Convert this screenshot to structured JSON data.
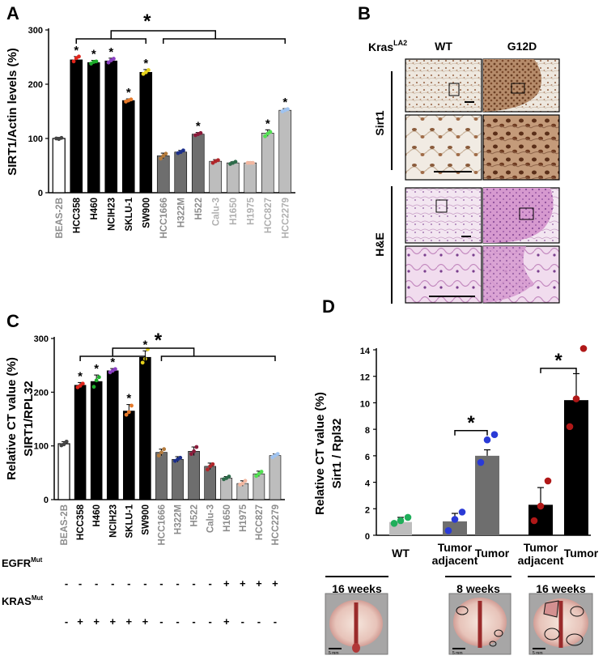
{
  "panels": {
    "a": "A",
    "b": "B",
    "c": "C",
    "d": "D"
  },
  "chart_data": [
    {
      "id": "A",
      "type": "bar",
      "ylabel": "SIRT1/Actin levels (%)",
      "ylim": [
        0,
        300
      ],
      "yticks": [
        "0",
        "100",
        "200",
        "300"
      ],
      "categories": [
        "BEAS-2B",
        "HCC358",
        "H460",
        "NCIH23",
        "SKLU-1",
        "SW900",
        "HCC1666",
        "H322M",
        "H522",
        "Calu-3",
        "H1650",
        "H1975",
        "HCC827",
        "HCC2279"
      ],
      "values": [
        100,
        245,
        240,
        243,
        170,
        222,
        68,
        75,
        108,
        58,
        55,
        55,
        110,
        152
      ],
      "errors": [
        2,
        6,
        4,
        5,
        3,
        5,
        5,
        3,
        3,
        3,
        2,
        2,
        6,
        3
      ],
      "points": [
        [
          100,
          99,
          101
        ],
        [
          242,
          248,
          251
        ],
        [
          238,
          241,
          242
        ],
        [
          240,
          244,
          247
        ],
        [
          168,
          170,
          172
        ],
        [
          219,
          222,
          226
        ],
        [
          63,
          68,
          72
        ],
        [
          73,
          75,
          78
        ],
        [
          106,
          108,
          110
        ],
        [
          55,
          58,
          60
        ],
        [
          53,
          55,
          57
        ],
        [
          55,
          55,
          55
        ],
        [
          104,
          109,
          112
        ],
        [
          150,
          152,
          154
        ]
      ],
      "fill": [
        "#ffffff",
        "#000000",
        "#000000",
        "#000000",
        "#000000",
        "#000000",
        "#6e6e6e",
        "#6e6e6e",
        "#6e6e6e",
        "#bdbdbd",
        "#bdbdbd",
        "#bdbdbd",
        "#bdbdbd",
        "#bdbdbd"
      ],
      "label_colors": [
        "#8c8c8c",
        "#000000",
        "#000000",
        "#000000",
        "#000000",
        "#000000",
        "#8c8c8c",
        "#8c8c8c",
        "#8c8c8c",
        "#b0b0b0",
        "#b0b0b0",
        "#b0b0b0",
        "#b0b0b0",
        "#b0b0b0"
      ],
      "dot_colors": [
        "#444444",
        "#e0241b",
        "#1fae2c",
        "#8a3fc1",
        "#e5792a",
        "#e6d21c",
        "#b37a3c",
        "#1c2f8a",
        "#8b1a3a",
        "#b0262a",
        "#2e6b4a",
        "#f2b7a0",
        "#52e052",
        "#9fc3f0"
      ],
      "stars": [
        false,
        true,
        true,
        true,
        true,
        true,
        false,
        false,
        true,
        false,
        false,
        false,
        true,
        true
      ],
      "bracket_star": "*"
    },
    {
      "id": "C",
      "type": "bar",
      "ylabel": [
        "Relative CT value (%)",
        "SIRT1/RPL32"
      ],
      "ylim": [
        0,
        300
      ],
      "yticks": [
        "0",
        "100",
        "200",
        "300"
      ],
      "categories": [
        "BEAS-2B",
        "HCC358",
        "H460",
        "NCIH23",
        "SKLU-1",
        "SW900",
        "HCC1666",
        "H322M",
        "H522",
        "Calu-3",
        "H1650",
        "H1975",
        "HCC827",
        "HCC2279"
      ],
      "values": [
        104,
        213,
        220,
        240,
        165,
        265,
        88,
        75,
        90,
        62,
        40,
        30,
        48,
        82
      ],
      "errors": [
        4,
        5,
        12,
        4,
        12,
        12,
        6,
        5,
        8,
        6,
        3,
        5,
        5,
        3
      ],
      "points": [
        [
          101,
          103,
          108
        ],
        [
          209,
          212,
          216
        ],
        [
          210,
          222,
          228
        ],
        [
          237,
          240,
          243
        ],
        [
          158,
          163,
          175
        ],
        [
          255,
          262,
          280
        ],
        [
          82,
          88,
          94
        ],
        [
          72,
          75,
          78
        ],
        [
          85,
          90,
          98
        ],
        [
          56,
          62,
          66
        ],
        [
          38,
          40,
          43
        ],
        [
          28,
          30,
          35
        ],
        [
          44,
          48,
          52
        ],
        [
          79,
          82,
          85
        ]
      ],
      "fill": [
        "#ffffff",
        "#000000",
        "#000000",
        "#000000",
        "#000000",
        "#000000",
        "#6e6e6e",
        "#6e6e6e",
        "#6e6e6e",
        "#6e6e6e",
        "#bdbdbd",
        "#bdbdbd",
        "#bdbdbd",
        "#bdbdbd"
      ],
      "label_colors": [
        "#8c8c8c",
        "#000000",
        "#000000",
        "#000000",
        "#000000",
        "#000000",
        "#8c8c8c",
        "#8c8c8c",
        "#8c8c8c",
        "#8c8c8c",
        "#8c8c8c",
        "#8c8c8c",
        "#8c8c8c",
        "#8c8c8c"
      ],
      "dot_colors": [
        "#444444",
        "#e0241b",
        "#1fae2c",
        "#8a3fc1",
        "#e5792a",
        "#e6d21c",
        "#b37a3c",
        "#1c2f8a",
        "#8b1a3a",
        "#b0262a",
        "#2e6b4a",
        "#f2b7a0",
        "#52e052",
        "#9fc3f0"
      ],
      "stars": [
        false,
        true,
        true,
        true,
        true,
        true,
        false,
        false,
        false,
        false,
        false,
        false,
        false,
        false
      ],
      "bracket_star": "*",
      "egfr_label": "EGFR",
      "kras_label": "KRAS",
      "mut_sup": "Mut",
      "egfr": [
        "-",
        "-",
        "-",
        "-",
        "-",
        "-",
        "-",
        "-",
        "-",
        "-",
        "+",
        "+",
        "+",
        "+"
      ],
      "kras": [
        "-",
        "+",
        "+",
        "+",
        "+",
        "+",
        "-",
        "-",
        "-",
        "-",
        "+",
        "-",
        "-",
        "-"
      ]
    },
    {
      "id": "D",
      "type": "bar",
      "ylabel": [
        "Relative CT value (%)",
        "Sirt1 / Rpl32"
      ],
      "ylim": [
        0,
        14
      ],
      "yticks": [
        "0",
        "2",
        "4",
        "6",
        "8",
        "10",
        "12",
        "14"
      ],
      "categories": [
        "WT",
        "Tumor adjacent",
        "Tumor",
        "Tumor adjacent",
        "Tumor"
      ],
      "category_lines": [
        [
          "WT"
        ],
        [
          "Tumor",
          "adjacent"
        ],
        [
          "Tumor"
        ],
        [
          "Tumor",
          "adjacent"
        ],
        [
          "Tumor"
        ]
      ],
      "values": [
        1.0,
        1.05,
        6.0,
        2.3,
        10.2
      ],
      "errors": [
        0.35,
        0.6,
        0.45,
        1.3,
        2.0
      ],
      "points": [
        [
          0.9,
          1.1,
          1.35
        ],
        [
          0.35,
          1.2,
          1.75
        ],
        [
          5.5,
          7.2,
          7.6
        ],
        [
          1.1,
          2.2,
          4.1
        ],
        [
          8.2,
          10.3,
          14.1
        ]
      ],
      "fill": [
        "#bdbdbd",
        "#6e6e6e",
        "#6e6e6e",
        "#000000",
        "#000000"
      ],
      "dot_colors": [
        "#1fae5a",
        "#2a3ad6",
        "#2a3ad6",
        "#b01818",
        "#b01818"
      ],
      "brackets_star": "*",
      "groups": [
        "16 weeks",
        "8 weeks",
        "16 weeks"
      ],
      "scale_label": "5 mm"
    }
  ],
  "panel_b": {
    "kras_label": "Kras",
    "kras_sup": "LA2",
    "col_wt": "WT",
    "col_g12d": "G12D",
    "row_sirt1": "Sirt1",
    "row_he": "H&E"
  }
}
